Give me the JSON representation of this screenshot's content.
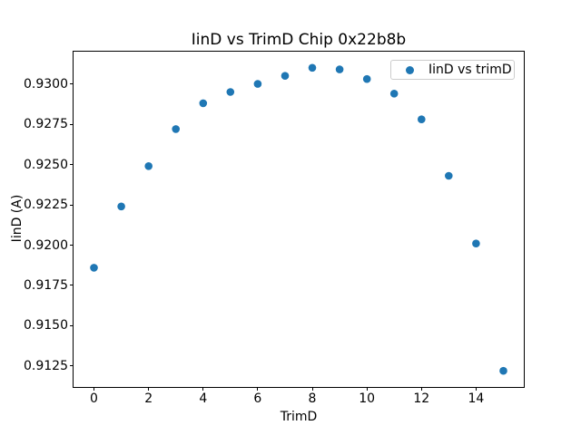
{
  "chart_data": {
    "type": "scatter",
    "title": "IinD vs TrimD Chip 0x22b8b",
    "xlabel": "TrimD",
    "ylabel": "IinD (A)",
    "legend": {
      "label": "IinD vs trimD",
      "position": "upper right"
    },
    "marker_color": "#1f77b4",
    "grid": false,
    "x": [
      0,
      1,
      2,
      3,
      4,
      5,
      6,
      7,
      8,
      9,
      10,
      11,
      12,
      13,
      14,
      15
    ],
    "y": [
      0.9186,
      0.9224,
      0.9249,
      0.9272,
      0.9288,
      0.9295,
      0.93,
      0.9305,
      0.931,
      0.9309,
      0.9303,
      0.9294,
      0.9278,
      0.9243,
      0.9201,
      0.9122
    ],
    "xlim": [
      -0.75,
      15.75
    ],
    "ylim": [
      0.9112,
      0.932
    ],
    "xticks": {
      "values": [
        0,
        2,
        4,
        6,
        8,
        10,
        12,
        14
      ],
      "labels": [
        "0",
        "2",
        "4",
        "6",
        "8",
        "10",
        "12",
        "14"
      ]
    },
    "yticks": {
      "values": [
        0.9125,
        0.915,
        0.9175,
        0.92,
        0.9225,
        0.925,
        0.9275,
        0.93
      ],
      "labels": [
        "0.9125",
        "0.9150",
        "0.9175",
        "0.9200",
        "0.9225",
        "0.9250",
        "0.9275",
        "0.9300"
      ]
    }
  }
}
